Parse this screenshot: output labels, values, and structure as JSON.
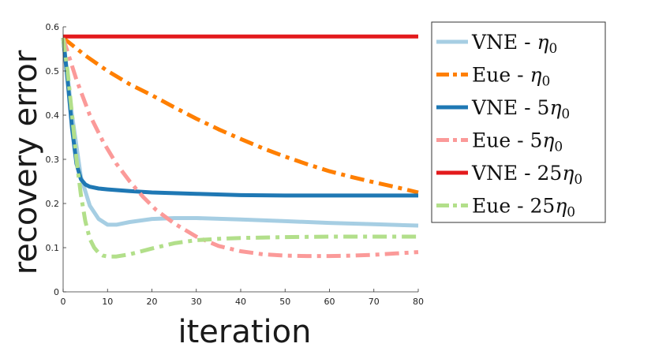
{
  "chart_data": {
    "type": "line",
    "title": "",
    "xlabel": "iteration",
    "ylabel": "recovery error",
    "xlim": [
      0,
      80
    ],
    "ylim": [
      0,
      0.6
    ],
    "xticks": [
      0,
      10,
      20,
      30,
      40,
      50,
      60,
      70,
      80
    ],
    "yticks": [
      0,
      0.1,
      0.2,
      0.3,
      0.4,
      0.5,
      0.6
    ],
    "xtick_labels": [
      "0",
      "10",
      "20",
      "30",
      "40",
      "50",
      "60",
      "70",
      "80"
    ],
    "ytick_labels": [
      "0",
      "0.1",
      "0.2",
      "0.3",
      "0.4",
      "0.5",
      "0.6"
    ],
    "grid": false,
    "legend_position": "right-outside",
    "series": [
      {
        "name": "VNE - η0",
        "legend_main": "VNE - ",
        "legend_sym": "η",
        "legend_sub": "0",
        "color": "#a6cee3",
        "dash": "solid",
        "x": [
          0,
          2,
          4,
          6,
          8,
          10,
          12,
          15,
          20,
          25,
          30,
          40,
          50,
          60,
          70,
          80
        ],
        "y": [
          0.575,
          0.4,
          0.26,
          0.195,
          0.165,
          0.152,
          0.152,
          0.158,
          0.165,
          0.167,
          0.167,
          0.164,
          0.16,
          0.156,
          0.153,
          0.15
        ]
      },
      {
        "name": "Eue - η0",
        "legend_main": "Eue - ",
        "legend_sym": "η",
        "legend_sub": "0",
        "color": "#ff7f00",
        "dash": "dashdot",
        "x": [
          0,
          5,
          10,
          15,
          20,
          25,
          30,
          35,
          40,
          45,
          50,
          55,
          60,
          65,
          70,
          75,
          80
        ],
        "y": [
          0.575,
          0.535,
          0.5,
          0.47,
          0.445,
          0.418,
          0.392,
          0.368,
          0.346,
          0.325,
          0.306,
          0.289,
          0.273,
          0.26,
          0.248,
          0.237,
          0.225
        ]
      },
      {
        "name": "VNE - 5η0",
        "legend_main": "VNE - 5",
        "legend_sym": "η",
        "legend_sub": "0",
        "color": "#1f78b4",
        "dash": "solid",
        "x": [
          0,
          1,
          2,
          3,
          4,
          5,
          6,
          8,
          10,
          15,
          20,
          30,
          40,
          50,
          60,
          70,
          80
        ],
        "y": [
          0.575,
          0.48,
          0.37,
          0.29,
          0.255,
          0.243,
          0.238,
          0.234,
          0.232,
          0.228,
          0.225,
          0.222,
          0.219,
          0.218,
          0.218,
          0.218,
          0.218
        ]
      },
      {
        "name": "Eue - 5η0",
        "legend_main": "Eue - 5",
        "legend_sym": "η",
        "legend_sub": "0",
        "color": "#fb9a99",
        "dash": "dashdot",
        "x": [
          0,
          3,
          6,
          9,
          12,
          15,
          18,
          21,
          25,
          30,
          35,
          40,
          45,
          50,
          55,
          60,
          65,
          70,
          75,
          80
        ],
        "y": [
          0.575,
          0.48,
          0.4,
          0.34,
          0.29,
          0.25,
          0.215,
          0.185,
          0.155,
          0.125,
          0.104,
          0.092,
          0.085,
          0.082,
          0.081,
          0.081,
          0.082,
          0.084,
          0.087,
          0.09
        ]
      },
      {
        "name": "VNE - 25η0",
        "legend_main": "VNE - 25",
        "legend_sym": "η",
        "legend_sub": "0",
        "color": "#e31a1c",
        "dash": "solid",
        "x": [
          0,
          80
        ],
        "y": [
          0.578,
          0.578
        ]
      },
      {
        "name": "Eue - 25η0",
        "legend_main": "Eue - 25",
        "legend_sym": "η",
        "legend_sub": "0",
        "color": "#b2df8a",
        "dash": "dashdot",
        "x": [
          0,
          1,
          2,
          3,
          4,
          5,
          6,
          7,
          8,
          9,
          10,
          12,
          15,
          20,
          25,
          30,
          35,
          40,
          50,
          60,
          70,
          80
        ],
        "y": [
          0.575,
          0.5,
          0.4,
          0.3,
          0.22,
          0.16,
          0.12,
          0.1,
          0.088,
          0.082,
          0.08,
          0.08,
          0.085,
          0.098,
          0.11,
          0.117,
          0.12,
          0.122,
          0.124,
          0.125,
          0.125,
          0.125
        ]
      }
    ]
  }
}
